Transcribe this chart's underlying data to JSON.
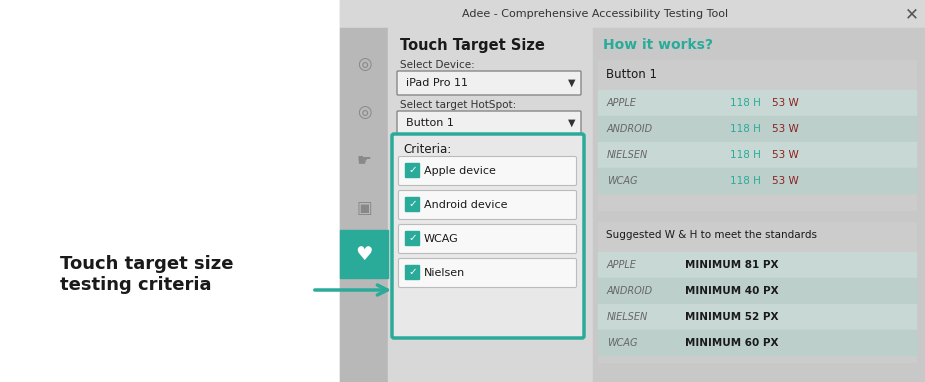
{
  "title": "Adee - Comprehensive Accessibility Testing Tool",
  "teal_color": "#2aab9a",
  "white": "#ffffff",
  "dialog_bg": "#d0d0d0",
  "sidebar_bg": "#b8b8b8",
  "panel_bg": "#d8d8d8",
  "right_bg": "#c8c8c8",
  "titlebar_bg": "#d8d8d8",
  "touch_target_title": "Touch Target Size",
  "select_device_label": "Select Device:",
  "device_value": "iPad Pro 11",
  "select_hotspot_label": "Select target HotSpot:",
  "hotspot_value": "Button 1",
  "criteria_label": "Criteria:",
  "criteria_items": [
    "Apple device",
    "Android device",
    "WCAG",
    "Nielsen"
  ],
  "how_it_works": "How it works?",
  "button1_label": "Button 1",
  "table1_rows": [
    {
      "label": "APPLE",
      "h": "118 H",
      "w": "53 W",
      "h_color": "#2aab9a",
      "w_color": "#8b2020"
    },
    {
      "label": "ANDROID",
      "h": "118 H",
      "w": "53 W",
      "h_color": "#2aab9a",
      "w_color": "#8b2020"
    },
    {
      "label": "NIELSEN",
      "h": "118 H",
      "w": "53 W",
      "h_color": "#2aab9a",
      "w_color": "#8b2020"
    },
    {
      "label": "WCAG",
      "h": "118 H",
      "w": "53 W",
      "h_color": "#2aab9a",
      "w_color": "#8b2020"
    }
  ],
  "table2_title": "Suggested W & H to meet the standards",
  "table2_rows": [
    {
      "label": "APPLE",
      "value": "MINIMUM 81 PX"
    },
    {
      "label": "ANDROID",
      "value": "MINIMUM 40 PX"
    },
    {
      "label": "NIELSEN",
      "value": "MINIMUM 52 PX"
    },
    {
      "label": "WCAG",
      "value": "MINIMUM 60 PX"
    }
  ],
  "annotation_text": "Touch target size\ntesting criteria",
  "row_colors": [
    "#c8d8d4",
    "#bccfcb",
    "#c8d8d4",
    "#bccfcb"
  ]
}
